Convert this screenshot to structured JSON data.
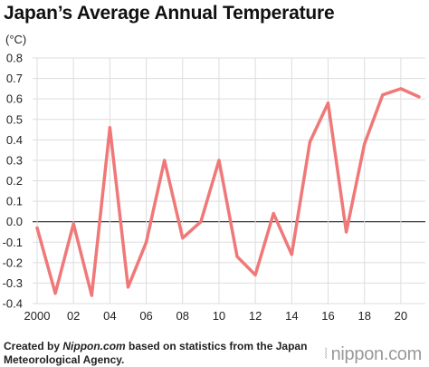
{
  "header": {
    "title": "Japan’s Average Annual Temperature",
    "unit": "(°C)"
  },
  "footer": {
    "credit_prefix": "Created by ",
    "credit_source": "Nippon.com",
    "credit_rest": " based on statistics from the Japan",
    "credit_line2": "Meteorological Agency.",
    "brand": "nippon.com",
    "brand_icon": "nippon-logo-icon"
  },
  "colors": {
    "line": "#f07878",
    "grid": "#dddddd",
    "zero": "#222222"
  },
  "chart_data": {
    "type": "line",
    "title": "Japan’s Average Annual Temperature",
    "ylabel": "(°C)",
    "xlabel": "",
    "ylim": [
      -0.4,
      0.8
    ],
    "xlim": [
      2000,
      2021
    ],
    "grid": true,
    "yticks": [
      "0.8",
      "0.7",
      "0.6",
      "0.5",
      "0.4",
      "0.3",
      "0.2",
      "0.1",
      "0.0",
      "-0.1",
      "-0.2",
      "-0.3",
      "-0.4"
    ],
    "xtick_labels": [
      {
        "x": 2000,
        "label": "2000"
      },
      {
        "x": 2002,
        "label": "02"
      },
      {
        "x": 2004,
        "label": "04"
      },
      {
        "x": 2006,
        "label": "06"
      },
      {
        "x": 2008,
        "label": "08"
      },
      {
        "x": 2010,
        "label": "10"
      },
      {
        "x": 2012,
        "label": "12"
      },
      {
        "x": 2014,
        "label": "14"
      },
      {
        "x": 2016,
        "label": "16"
      },
      {
        "x": 2018,
        "label": "18"
      },
      {
        "x": 2020,
        "label": "20"
      }
    ],
    "x": [
      2000,
      2001,
      2002,
      2003,
      2004,
      2005,
      2006,
      2007,
      2008,
      2009,
      2010,
      2011,
      2012,
      2013,
      2014,
      2015,
      2016,
      2017,
      2018,
      2019,
      2020,
      2021
    ],
    "values": [
      -0.03,
      -0.35,
      -0.01,
      -0.36,
      0.46,
      -0.32,
      -0.1,
      0.3,
      -0.08,
      0.0,
      0.3,
      -0.17,
      -0.26,
      0.04,
      -0.16,
      0.39,
      0.58,
      -0.05,
      0.38,
      0.62,
      0.65,
      0.61
    ]
  }
}
